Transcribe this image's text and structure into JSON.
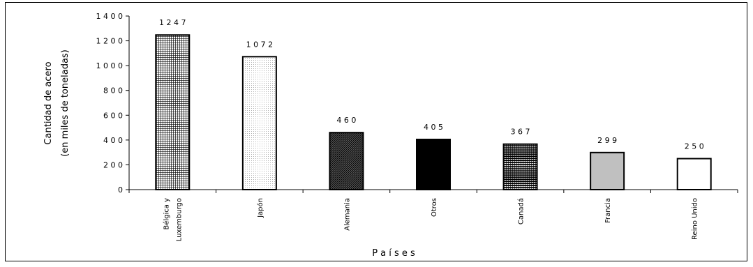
{
  "chart_data": {
    "type": "bar",
    "categories": [
      "Bélgica y|Luxemburgo",
      "Japón",
      "Alemania",
      "Otros",
      "Canadá",
      "Francia",
      "Reino Unido"
    ],
    "values": [
      1247,
      1072,
      460,
      405,
      367,
      299,
      250
    ],
    "data_labels": [
      "1 2 4 7",
      "1 0 7 2",
      "4 6 0",
      "4 0 5",
      "3 6 7",
      "2 9 9",
      "2 5 0"
    ],
    "patterns": [
      "grid-dense",
      "dots-light",
      "diagonal-dark",
      "solid-black",
      "grid-dark",
      "solid-gray",
      "solid-white"
    ],
    "title": "",
    "xlabel": "P a í s e s",
    "ylabel_lines": [
      "Cantidad de acero",
      "(en miles de toneladas)"
    ],
    "ylim": [
      0,
      1400
    ],
    "yticks": [
      0,
      200,
      400,
      600,
      800,
      1000,
      1200,
      1400
    ],
    "ytick_labels": [
      "0",
      "2 0 0",
      "4 0 0",
      "6 0 0",
      "8 0 0",
      "1 0 0 0",
      "1 2 0 0",
      "1 4 0 0"
    ],
    "grid": false,
    "legend": "none",
    "colors": {
      "black": "#000000",
      "gray": "#c0c0c0",
      "white": "#ffffff"
    }
  }
}
